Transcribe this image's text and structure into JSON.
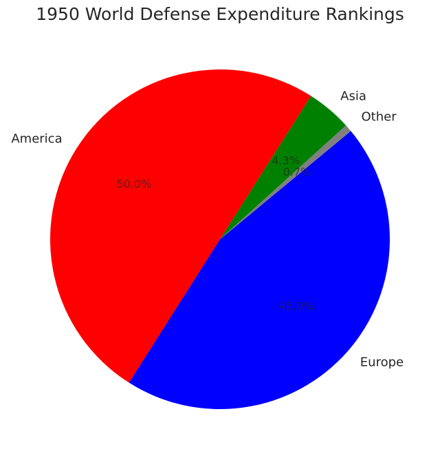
{
  "chart_data": {
    "type": "pie",
    "title": "1950 World Defense Expenditure Rankings",
    "slices": [
      {
        "label": "America",
        "value": 50.0,
        "pct_label": "50.0%",
        "color": "#ff0000"
      },
      {
        "label": "Europe",
        "value": 45.0,
        "pct_label": "45.0%",
        "color": "#0000ff"
      },
      {
        "label": "Other",
        "value": 0.7,
        "pct_label": "0.7%",
        "color": "#808080"
      },
      {
        "label": "Asia",
        "value": 4.3,
        "pct_label": "4.3%",
        "color": "#008000"
      }
    ],
    "start_angle_deg": 57.6,
    "direction": "counterclockwise",
    "legend": "none"
  }
}
